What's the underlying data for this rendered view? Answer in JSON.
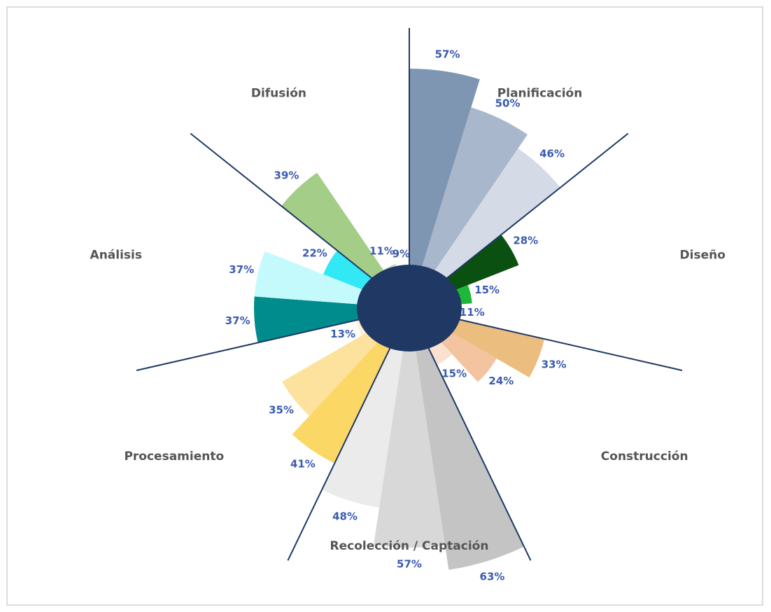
{
  "chart_data": {
    "type": "radial_bar",
    "groups": [
      {
        "name": "Planificación",
        "values": [
          57,
          50,
          46
        ],
        "value_labels": [
          "57%",
          "50%",
          "46%"
        ],
        "colors": [
          "#7f96b2",
          "#a9b7cc",
          "#d4dbe6"
        ]
      },
      {
        "name": "Diseño",
        "values": [
          28,
          15,
          11
        ],
        "value_labels": [
          "28%",
          "15%",
          "11%"
        ],
        "colors": [
          "#0a5010",
          "#1db83a",
          "#55f07a"
        ]
      },
      {
        "name": "Construcción",
        "values": [
          33,
          24,
          15
        ],
        "value_labels": [
          "33%",
          "24%",
          "15%"
        ],
        "colors": [
          "#ebbd7f",
          "#f4c4a0",
          "#fbe1cf"
        ]
      },
      {
        "name": "Recolección / Captación",
        "values": [
          63,
          57,
          48
        ],
        "value_labels": [
          "63%",
          "57%",
          "48%"
        ],
        "colors": [
          "#c4c4c4",
          "#d8d8d8",
          "#ebebeb"
        ]
      },
      {
        "name": "Procesamiento",
        "values": [
          41,
          35,
          13
        ],
        "value_labels": [
          "41%",
          "35%",
          "13%"
        ],
        "colors": [
          "#fbd766",
          "#fde29e",
          "#fdf0d2"
        ]
      },
      {
        "name": "Análisis",
        "values": [
          37,
          37,
          22
        ],
        "value_labels": [
          "37%",
          "37%",
          "22%"
        ],
        "colors": [
          "#008c8c",
          "#c4fafc",
          "#33e8f5"
        ]
      },
      {
        "name": "Difusión",
        "values": [
          39,
          11,
          9
        ],
        "value_labels": [
          "39%",
          "11%",
          "9%"
        ],
        "colors": [
          "#a4cd88",
          "#c7e0b6",
          "#e1efd6"
        ]
      }
    ]
  }
}
